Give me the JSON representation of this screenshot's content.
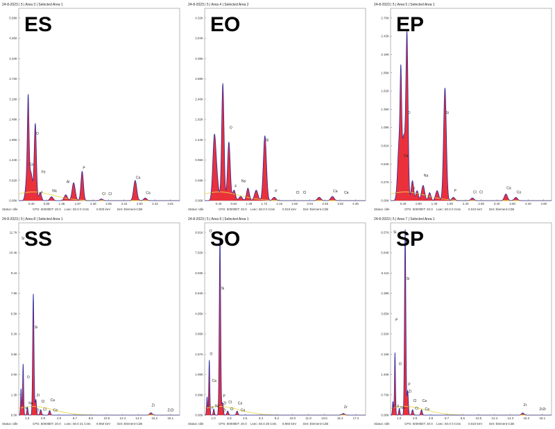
{
  "chart_data": [
    {
      "type": "area",
      "label": "ES",
      "header": "24-8-2023 | 5 | Area 3 | Selected Area 1",
      "yticks": [
        "0.00K",
        "0.62K",
        "1.24K",
        "1.86K",
        "2.48K",
        "3.10K",
        "3.72K",
        "4.34K",
        "4.96K",
        "5.58K"
      ],
      "ylim": [
        0,
        5.9
      ],
      "xticks": [
        "0.40",
        "0.88",
        "1.36",
        "1.87",
        "2.36",
        "2.85",
        "3.34",
        "3.83",
        "4.32",
        "4.81"
      ],
      "xlim": [
        0.0,
        5.1
      ],
      "peaks": [
        {
          "x": 0.277,
          "y": 0.9,
          "w": 0.05
        },
        {
          "x": 0.3,
          "y": 2.3,
          "w": 0.025
        },
        {
          "x": 0.39,
          "y": 0.8,
          "w": 0.05
        },
        {
          "x": 0.525,
          "y": 2.35,
          "w": 0.035
        },
        {
          "x": 0.68,
          "y": 0.25,
          "w": 0.04
        },
        {
          "x": 1.04,
          "y": 0.12,
          "w": 0.05
        },
        {
          "x": 1.49,
          "y": 0.18,
          "w": 0.05
        },
        {
          "x": 1.74,
          "y": 0.55,
          "w": 0.05
        },
        {
          "x": 2.01,
          "y": 0.9,
          "w": 0.04
        },
        {
          "x": 2.62,
          "y": 0.05,
          "w": 0.05
        },
        {
          "x": 3.69,
          "y": 0.62,
          "w": 0.05
        },
        {
          "x": 4.01,
          "y": 0.08,
          "w": 0.05
        }
      ],
      "peak_labels": [
        {
          "text": "Ca",
          "x": 0.3,
          "y": 1.05
        },
        {
          "text": "O",
          "x": 0.525,
          "y": 2.0
        },
        {
          "text": "Fe",
          "x": 0.7,
          "y": 0.82
        },
        {
          "text": "F",
          "x": 0.68,
          "y": 0.18
        },
        {
          "text": "Na",
          "x": 1.04,
          "y": 0.25
        },
        {
          "text": "Al",
          "x": 1.49,
          "y": 0.52
        },
        {
          "text": "P",
          "x": 2.01,
          "y": 0.95
        },
        {
          "text": "Cl",
          "x": 2.62,
          "y": 0.15
        },
        {
          "text": "Cl",
          "x": 2.82,
          "y": 0.15
        },
        {
          "text": "Ca",
          "x": 3.69,
          "y": 0.65
        },
        {
          "text": "Ca",
          "x": 4.01,
          "y": 0.18
        }
      ],
      "status": {
        "status": "Status: Idle",
        "cps": "CPS: 50000",
        "dt": "DT: 20.0",
        "lsec": "Lsec: 50.0",
        "cnts": "0 Cnts",
        "kev": "0.000 keV",
        "det": "Det: Element-C2B"
      }
    },
    {
      "type": "area",
      "label": "EO",
      "header": "24-8-2023 | 5 | Area 4 | Selected Area 2",
      "yticks": [
        "0.00K",
        "0.48K",
        "0.96K",
        "1.44K",
        "1.92K",
        "2.40K",
        "2.88K",
        "3.36K",
        "3.84K",
        "4.32K"
      ],
      "ylim": [
        0,
        4.6
      ],
      "xticks": [
        "0.40",
        "0.84",
        "1.28",
        "1.72",
        "2.16",
        "2.60",
        "3.04",
        "3.48",
        "3.92",
        "4.36"
      ],
      "xlim": [
        0.0,
        4.65
      ],
      "peaks": [
        {
          "x": 0.277,
          "y": 1.4,
          "w": 0.045
        },
        {
          "x": 0.35,
          "y": 0.5,
          "w": 0.05
        },
        {
          "x": 0.525,
          "y": 2.8,
          "w": 0.035
        },
        {
          "x": 0.7,
          "y": 1.4,
          "w": 0.04
        },
        {
          "x": 0.85,
          "y": 0.25,
          "w": 0.04
        },
        {
          "x": 1.04,
          "y": 0.1,
          "w": 0.05
        },
        {
          "x": 1.25,
          "y": 0.3,
          "w": 0.04
        },
        {
          "x": 1.49,
          "y": 0.25,
          "w": 0.05
        },
        {
          "x": 1.74,
          "y": 1.55,
          "w": 0.045
        },
        {
          "x": 2.01,
          "y": 0.08,
          "w": 0.05
        },
        {
          "x": 3.31,
          "y": 0.08,
          "w": 0.05
        },
        {
          "x": 3.69,
          "y": 0.1,
          "w": 0.05
        }
      ],
      "peak_labels": [
        {
          "text": "O",
          "x": 0.7,
          "y": 1.7
        },
        {
          "text": "F",
          "x": 0.85,
          "y": 0.3
        },
        {
          "text": "Na",
          "x": 1.04,
          "y": 0.42
        },
        {
          "text": "Si",
          "x": 1.74,
          "y": 1.4
        },
        {
          "text": "P",
          "x": 2.01,
          "y": 0.18
        },
        {
          "text": "Cl",
          "x": 2.62,
          "y": 0.15
        },
        {
          "text": "Cl",
          "x": 2.82,
          "y": 0.15
        },
        {
          "text": "Ca",
          "x": 3.69,
          "y": 0.18
        },
        {
          "text": "Ca",
          "x": 4.01,
          "y": 0.15
        }
      ],
      "status": {
        "status": "Status: Idle",
        "cps": "CPS: 50000",
        "dt": "DT: 20.0",
        "lsec": "Lsec: 50.0",
        "cnts": "0 Cnts",
        "kev": "0.010 keV",
        "det": "Det: Element-C2B"
      }
    },
    {
      "type": "area",
      "label": "EP",
      "header": "24-8-2023 | 5 | Area 5 | Selected Area 1",
      "yticks": [
        "0.00K",
        "0.27K",
        "0.54K",
        "0.81K",
        "1.08K",
        "1.35K",
        "1.62K",
        "1.89K",
        "2.16K",
        "2.43K",
        "2.70K"
      ],
      "ylim": [
        0,
        2.9
      ],
      "xticks": [
        "0.40",
        "0.90",
        "1.40",
        "1.90",
        "2.40",
        "2.90",
        "3.40",
        "3.90",
        "4.40",
        "4.90"
      ],
      "xlim": [
        0.0,
        5.15
      ],
      "peaks": [
        {
          "x": 0.277,
          "y": 0.9,
          "w": 0.05
        },
        {
          "x": 0.33,
          "y": 1.35,
          "w": 0.025
        },
        {
          "x": 0.42,
          "y": 0.95,
          "w": 0.05
        },
        {
          "x": 0.525,
          "y": 2.45,
          "w": 0.035
        },
        {
          "x": 0.7,
          "y": 0.3,
          "w": 0.04
        },
        {
          "x": 0.85,
          "y": 0.15,
          "w": 0.04
        },
        {
          "x": 1.04,
          "y": 0.23,
          "w": 0.05
        },
        {
          "x": 1.25,
          "y": 0.12,
          "w": 0.04
        },
        {
          "x": 1.49,
          "y": 0.15,
          "w": 0.05
        },
        {
          "x": 1.74,
          "y": 1.7,
          "w": 0.045
        },
        {
          "x": 2.01,
          "y": 0.05,
          "w": 0.05
        },
        {
          "x": 2.62,
          "y": 0.04,
          "w": 0.05
        },
        {
          "x": 3.69,
          "y": 0.1,
          "w": 0.05
        },
        {
          "x": 4.01,
          "y": 0.05,
          "w": 0.05
        }
      ],
      "peak_labels": [
        {
          "text": "O",
          "x": 0.525,
          "y": 1.3
        },
        {
          "text": "Ca",
          "x": 0.4,
          "y": 0.65
        },
        {
          "text": "F",
          "x": 0.7,
          "y": 0.15
        },
        {
          "text": "Na",
          "x": 1.04,
          "y": 0.35
        },
        {
          "text": "Si",
          "x": 1.74,
          "y": 1.3
        },
        {
          "text": "P",
          "x": 2.01,
          "y": 0.12
        },
        {
          "text": "Cl",
          "x": 2.62,
          "y": 0.1
        },
        {
          "text": "Cl",
          "x": 2.82,
          "y": 0.1
        },
        {
          "text": "Ca",
          "x": 3.69,
          "y": 0.16
        },
        {
          "text": "Ca",
          "x": 4.01,
          "y": 0.1
        }
      ],
      "status": {
        "status": "Status: Idle",
        "cps": "CPS: 50000",
        "dt": "DT: 20.0",
        "lsec": "Lsec: 50.0",
        "cnts": "0 Cnts",
        "kev": "0.010 keV",
        "det": "Det: Element-C2B"
      }
    },
    {
      "type": "area",
      "label": "SS",
      "header": "24-8-2023 | 5 | Area 8 | Selected Area 1",
      "yticks": [
        "0.0K",
        "1.3K",
        "2.6K",
        "3.9K",
        "5.2K",
        "6.5K",
        "7.8K",
        "9.1K",
        "10.4K",
        "11.7K"
      ],
      "ylim": [
        0,
        12.3
      ],
      "xticks": [
        "1.0",
        "2.9",
        "4.8",
        "6.7",
        "8.6",
        "10.5",
        "12.4",
        "14.3",
        "16.2",
        "18.1"
      ],
      "xlim": [
        0.0,
        19.2
      ],
      "peaks": [
        {
          "x": 0.28,
          "y": 1.7,
          "w": 0.06
        },
        {
          "x": 0.525,
          "y": 3.3,
          "w": 0.06
        },
        {
          "x": 1.04,
          "y": 0.5,
          "w": 0.07
        },
        {
          "x": 1.74,
          "y": 7.8,
          "w": 0.08
        },
        {
          "x": 2.04,
          "y": 1.0,
          "w": 0.08
        },
        {
          "x": 2.62,
          "y": 0.35,
          "w": 0.09
        },
        {
          "x": 3.69,
          "y": 0.3,
          "w": 0.09
        },
        {
          "x": 15.77,
          "y": 0.15,
          "w": 0.15
        }
      ],
      "peak_labels": [
        {
          "text": "Si",
          "x": 0.25,
          "y": 11.2
        },
        {
          "text": "O",
          "x": 0.9,
          "y": 2.3
        },
        {
          "text": "Si",
          "x": 1.8,
          "y": 5.5
        },
        {
          "text": "F",
          "x": 0.7,
          "y": 0.3
        },
        {
          "text": "Na",
          "x": 1.1,
          "y": 0.65
        },
        {
          "text": "Zr",
          "x": 2.04,
          "y": 1.15
        },
        {
          "text": "Zr",
          "x": 2.0,
          "y": 0.2
        },
        {
          "text": "Cl",
          "x": 2.62,
          "y": 0.75
        },
        {
          "text": "Cl",
          "x": 2.82,
          "y": 0.25
        },
        {
          "text": "Ca",
          "x": 3.69,
          "y": 0.85
        },
        {
          "text": "Ca",
          "x": 4.01,
          "y": 0.2
        },
        {
          "text": "Zr",
          "x": 15.77,
          "y": 0.5
        },
        {
          "text": "ZrZr",
          "x": 17.67,
          "y": 0.2
        }
      ],
      "status": {
        "status": "Status: Idle",
        "cps": "CPS: 50000",
        "dt": "DT: 20.0",
        "lsec": "Lsec: 50.0",
        "cnts": "21 Cnts",
        "kev": "9.960 keV",
        "det": "Det: Element-C2B"
      }
    },
    {
      "type": "area",
      "label": "SO",
      "header": "24-8-2023 | 5 | Area 9 | Selected Area 1",
      "yticks": [
        "0.00K",
        "0.99K",
        "1.98K",
        "2.97K",
        "3.96K",
        "4.95K",
        "5.94K",
        "6.93K",
        "7.92K",
        "8.91K"
      ],
      "ylim": [
        0,
        9.4
      ],
      "xticks": [
        "1.0",
        "2.8",
        "4.6",
        "6.4",
        "8.2",
        "10.0",
        "11.8",
        "13.6",
        "15.4",
        "17.2"
      ],
      "xlim": [
        0.0,
        18.3
      ],
      "peaks": [
        {
          "x": 0.28,
          "y": 0.9,
          "w": 0.06
        },
        {
          "x": 0.525,
          "y": 2.7,
          "w": 0.06
        },
        {
          "x": 1.04,
          "y": 0.3,
          "w": 0.07
        },
        {
          "x": 1.74,
          "y": 8.7,
          "w": 0.08
        },
        {
          "x": 2.04,
          "y": 0.6,
          "w": 0.08
        },
        {
          "x": 2.62,
          "y": 0.2,
          "w": 0.09
        },
        {
          "x": 3.69,
          "y": 0.2,
          "w": 0.09
        },
        {
          "x": 15.77,
          "y": 0.08,
          "w": 0.15
        }
      ],
      "peak_labels": [
        {
          "text": "O",
          "x": 0.45,
          "y": 8.9
        },
        {
          "text": "Si",
          "x": 1.8,
          "y": 6.1
        },
        {
          "text": "O",
          "x": 0.5,
          "y": 2.9
        },
        {
          "text": "Ca",
          "x": 0.75,
          "y": 1.6
        },
        {
          "text": "P",
          "x": 2.01,
          "y": 0.85
        },
        {
          "text": "Zr",
          "x": 2.04,
          "y": 0.5
        },
        {
          "text": "F",
          "x": 0.7,
          "y": 0.25
        },
        {
          "text": "Na",
          "x": 1.1,
          "y": 0.35
        },
        {
          "text": "Zr",
          "x": 2.0,
          "y": 0.15
        },
        {
          "text": "Cl",
          "x": 2.62,
          "y": 0.55
        },
        {
          "text": "Cl",
          "x": 2.82,
          "y": 0.2
        },
        {
          "text": "Ca",
          "x": 3.69,
          "y": 0.5
        },
        {
          "text": "Ca",
          "x": 4.01,
          "y": 0.15
        },
        {
          "text": "Zr",
          "x": 15.77,
          "y": 0.3
        }
      ],
      "status": {
        "status": "Status: Idle",
        "cps": "CPS: 50000",
        "dt": "DT: 20.0",
        "lsec": "Lsec: 50.0",
        "cnts": "28 Cnts",
        "kev": "8.960 keV",
        "det": "Det: Element-C2B"
      }
    },
    {
      "type": "area",
      "label": "SP",
      "header": "24-8-2023 | 5 | Area 7 | Selected Area 1",
      "yticks": [
        "0.00K",
        "0.73K",
        "1.46K",
        "2.19K",
        "2.92K",
        "3.65K",
        "4.38K",
        "5.11K",
        "5.84K",
        "6.57K"
      ],
      "ylim": [
        0,
        7.0
      ],
      "xticks": [
        "1.0",
        "2.9",
        "4.8",
        "6.7",
        "8.6",
        "10.5",
        "12.4",
        "14.3",
        "16.2",
        "18.1"
      ],
      "xlim": [
        0.0,
        19.2
      ],
      "peaks": [
        {
          "x": 0.28,
          "y": 0.5,
          "w": 0.06
        },
        {
          "x": 0.525,
          "y": 2.3,
          "w": 0.06
        },
        {
          "x": 1.04,
          "y": 0.25,
          "w": 0.07
        },
        {
          "x": 1.74,
          "y": 6.8,
          "w": 0.08
        },
        {
          "x": 2.04,
          "y": 0.9,
          "w": 0.08
        },
        {
          "x": 2.62,
          "y": 0.2,
          "w": 0.09
        },
        {
          "x": 3.69,
          "y": 0.2,
          "w": 0.09
        },
        {
          "x": 15.77,
          "y": 0.08,
          "w": 0.15
        }
      ],
      "peak_labels": [
        {
          "text": "Si",
          "x": 0.25,
          "y": 6.6
        },
        {
          "text": "Si",
          "x": 1.8,
          "y": 4.9
        },
        {
          "text": "P",
          "x": 0.5,
          "y": 3.4
        },
        {
          "text": "O",
          "x": 0.9,
          "y": 1.8
        },
        {
          "text": "P",
          "x": 2.01,
          "y": 1.05
        },
        {
          "text": "Zr",
          "x": 2.04,
          "y": 0.8
        },
        {
          "text": "F",
          "x": 0.7,
          "y": 0.25
        },
        {
          "text": "Na",
          "x": 1.1,
          "y": 0.2
        },
        {
          "text": "Cl",
          "x": 2.62,
          "y": 0.45
        },
        {
          "text": "Cl",
          "x": 2.82,
          "y": 0.18
        },
        {
          "text": "Ca",
          "x": 3.69,
          "y": 0.45
        },
        {
          "text": "Ca",
          "x": 4.01,
          "y": 0.15
        },
        {
          "text": "Zr",
          "x": 15.77,
          "y": 0.3
        },
        {
          "text": "ZrZr",
          "x": 17.67,
          "y": 0.15
        }
      ],
      "status": {
        "status": "Status: Idle",
        "cps": "CPS: 50000",
        "dt": "DT: 20.0",
        "lsec": "Lsec: 50.0",
        "cnts": "0 Cnts",
        "kev": "0.010 keV",
        "det": "Det: Element-C2B"
      }
    }
  ],
  "colors": {
    "fill": "#e8202a",
    "outline": "#2a2aa0",
    "background_curve": "#e8d84a",
    "axis": "#000000",
    "frame": "#888888"
  }
}
